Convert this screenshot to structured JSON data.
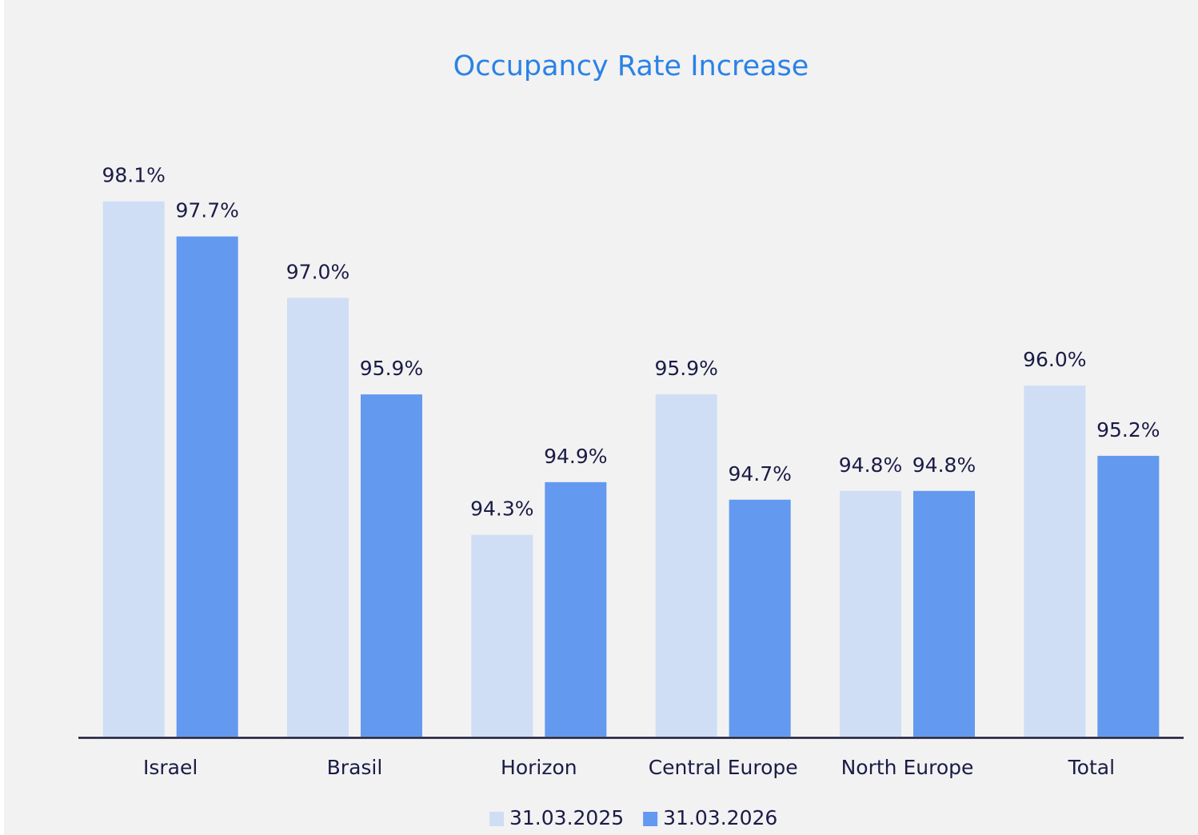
{
  "chart_data": {
    "type": "bar",
    "title": "Occupancy Rate Increase",
    "categories": [
      "Israel",
      "Brasil",
      "Horizon",
      "Central Europe",
      "North Europe",
      "Total"
    ],
    "series": [
      {
        "name": "31.03.2025",
        "color": "#cfdef4",
        "values": [
          98.1,
          97.0,
          94.3,
          95.9,
          94.8,
          96.0
        ],
        "value_labels": [
          "98.1%",
          "97.0%",
          "94.3%",
          "95.9%",
          "94.8%",
          "96.0%"
        ]
      },
      {
        "name": "31.03.2026",
        "color": "#6399ef",
        "values": [
          97.7,
          95.9,
          94.9,
          94.7,
          94.8,
          95.2
        ],
        "value_labels": [
          "97.7%",
          "95.9%",
          "94.9%",
          "94.7%",
          "94.8%",
          "95.2%"
        ]
      }
    ],
    "ylim": [
      92,
      99
    ],
    "legend": "bottom"
  }
}
